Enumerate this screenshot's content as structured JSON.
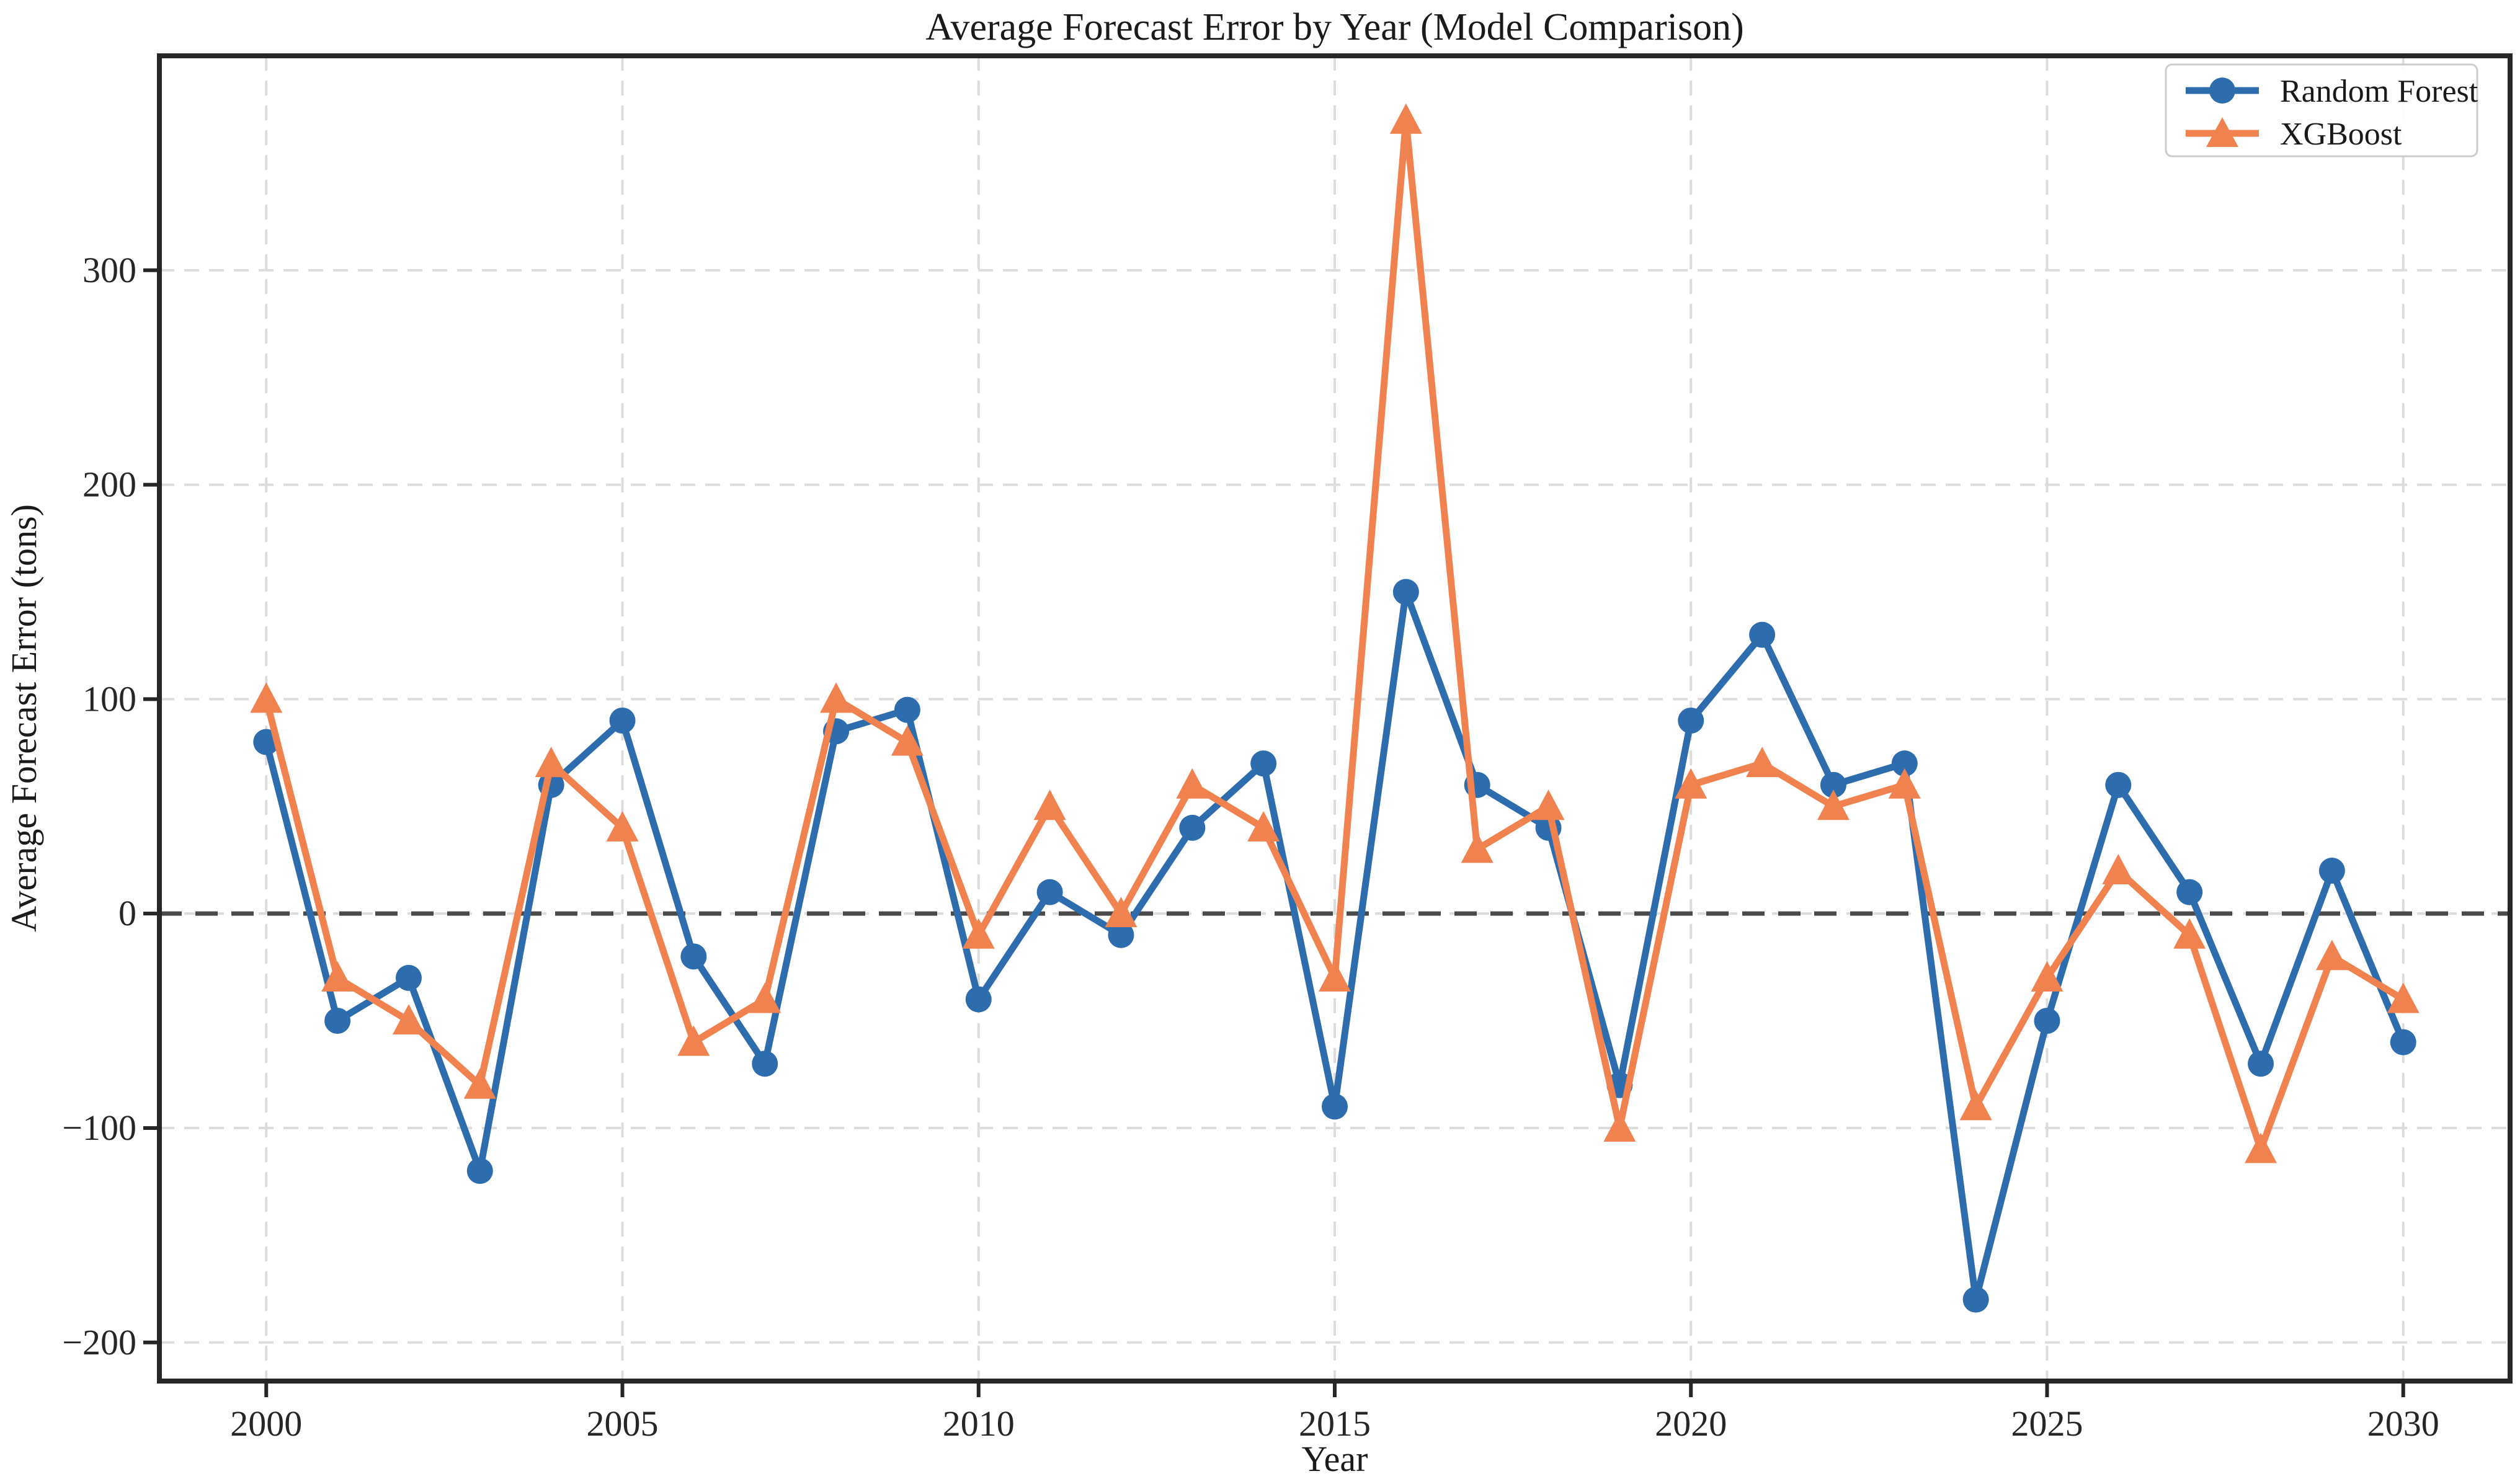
{
  "chart_data": {
    "type": "line",
    "title": "Average Forecast Error by Year (Model Comparison)",
    "xlabel": "Year",
    "ylabel": "Average Forecast Error (tons)",
    "x": [
      2000,
      2001,
      2002,
      2003,
      2004,
      2005,
      2006,
      2007,
      2008,
      2009,
      2010,
      2011,
      2012,
      2013,
      2014,
      2015,
      2016,
      2017,
      2018,
      2019,
      2020,
      2021,
      2022,
      2023,
      2024,
      2025,
      2026,
      2027,
      2028,
      2029,
      2030
    ],
    "series": [
      {
        "name": "Random Forest",
        "marker": "circle",
        "color": "#2d6cad",
        "values": [
          80,
          -50,
          -30,
          -120,
          60,
          90,
          -20,
          -70,
          85,
          95,
          -40,
          10,
          -10,
          40,
          70,
          -90,
          150,
          60,
          40,
          -80,
          90,
          130,
          60,
          70,
          -180,
          -50,
          60,
          10,
          -70,
          20,
          -60
        ]
      },
      {
        "name": "XGBoost",
        "marker": "triangle",
        "color": "#f0824f",
        "values": [
          100,
          -30,
          -50,
          -80,
          70,
          40,
          -60,
          -40,
          100,
          80,
          -10,
          50,
          0,
          60,
          40,
          -30,
          370,
          30,
          50,
          -100,
          60,
          70,
          50,
          60,
          -90,
          -30,
          20,
          -10,
          -110,
          -20,
          -40
        ]
      }
    ],
    "x_ticks": [
      2000,
      2005,
      2010,
      2015,
      2020,
      2025,
      2030
    ],
    "x_tick_labels": [
      "2000",
      "2005",
      "2010",
      "2015",
      "2020",
      "2025",
      "2030"
    ],
    "y_ticks": [
      -200,
      -100,
      0,
      100,
      200,
      300
    ],
    "y_tick_labels": [
      "−200",
      "−100",
      "0",
      "100",
      "200",
      "300"
    ],
    "xlim": [
      1998.5,
      2031.5
    ],
    "ylim": [
      -218,
      400
    ],
    "grid": true,
    "zero_line": true,
    "legend": {
      "position": "upper right",
      "entries": [
        "Random Forest",
        "XGBoost"
      ]
    }
  },
  "colors": {
    "background": "#ffffff",
    "grid": "#dcdcdc",
    "zero_line": "#4a4a4a",
    "axis": "#262626",
    "text": "#1a1a1a",
    "legend_border": "#cccccc"
  }
}
